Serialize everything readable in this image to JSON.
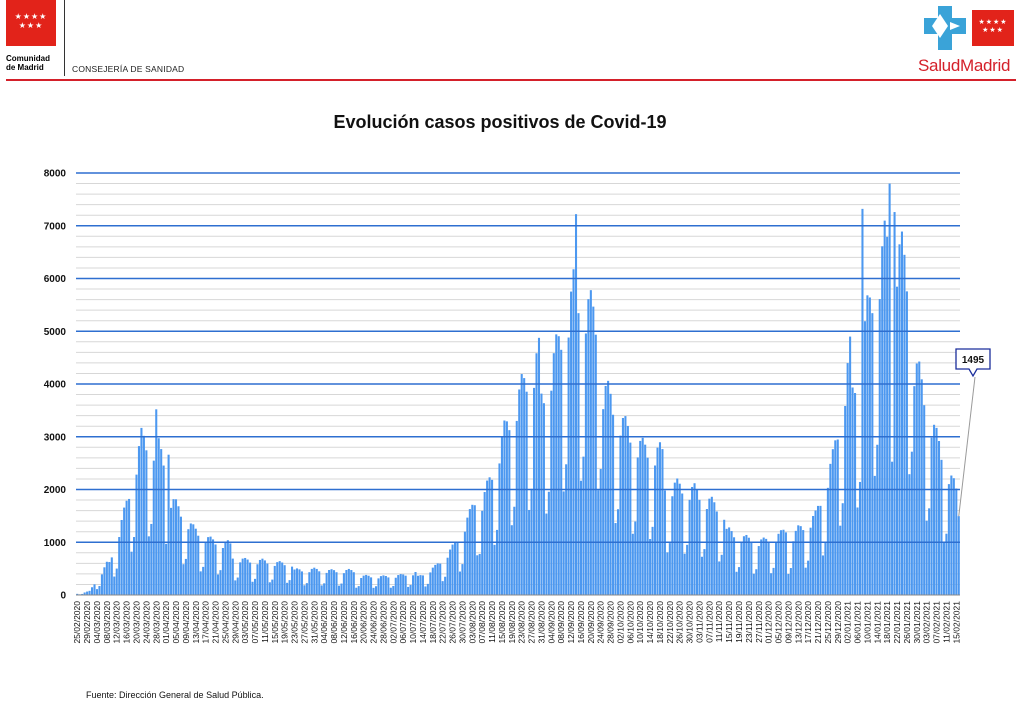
{
  "header": {
    "left_logo": {
      "stars": "★★★★\n★★★",
      "name": "Comunidad\nde Madrid",
      "icon": "comunidad-madrid-flag"
    },
    "department": "CONSEJERÍA DE SANIDAD",
    "right_logo": {
      "stars": "★★★★\n★★★",
      "name": "SaludMadrid",
      "icon": "salud-madrid-cross"
    }
  },
  "colors": {
    "bar": "#4c98f0",
    "major_grid": "#2e6fd0",
    "minor_grid": "#d7d7d7",
    "brand_red": "#d4202a",
    "callout_border": "#1b2e9c"
  },
  "chart_data": {
    "type": "bar",
    "title": "Evolución casos positivos de Covid-19",
    "xlabel": "",
    "ylabel": "",
    "ylim": [
      0,
      8000
    ],
    "yticks": [
      0,
      1000,
      2000,
      3000,
      4000,
      5000,
      6000,
      7000,
      8000
    ],
    "grid": true,
    "x_start": "25/02/2020",
    "x_end": "16/02/2021",
    "xtick_labels": [
      "25/02/2020",
      "29/02/2020",
      "04/03/2020",
      "08/03/2020",
      "12/03/2020",
      "16/03/2020",
      "20/03/2020",
      "24/03/2020",
      "28/03/2020",
      "01/04/2020",
      "05/04/2020",
      "09/04/2020",
      "13/04/2020",
      "17/04/2020",
      "21/04/2020",
      "25/04/2020",
      "29/04/2020",
      "03/05/2020",
      "07/05/2020",
      "11/05/2020",
      "15/05/2020",
      "19/05/2020",
      "23/05/2020",
      "27/05/2020",
      "31/05/2020",
      "04/06/2020",
      "08/06/2020",
      "12/06/2020",
      "16/06/2020",
      "20/06/2020",
      "24/06/2020",
      "28/06/2020",
      "02/07/2020",
      "06/07/2020",
      "10/07/2020",
      "14/07/2020",
      "18/07/2020",
      "22/07/2020",
      "26/07/2020",
      "30/07/2020",
      "03/08/2020",
      "07/08/2020",
      "11/08/2020",
      "15/08/2020",
      "19/08/2020",
      "23/08/2020",
      "27/08/2020",
      "31/08/2020",
      "04/09/2020",
      "08/09/2020",
      "12/09/2020",
      "16/09/2020",
      "20/09/2020",
      "24/09/2020",
      "28/09/2020",
      "02/10/2020",
      "06/10/2020",
      "10/10/2020",
      "14/10/2020",
      "18/10/2020",
      "22/10/2020",
      "26/10/2020",
      "30/10/2020",
      "03/11/2020",
      "07/11/2020",
      "11/11/2020",
      "15/11/2020",
      "19/11/2020",
      "23/11/2020",
      "27/11/2020",
      "01/12/2020",
      "05/12/2020",
      "09/12/2020",
      "13/12/2020",
      "17/12/2020",
      "21/12/2020",
      "25/12/2020",
      "29/12/2020",
      "02/01/2021",
      "06/01/2021",
      "10/01/2021",
      "14/01/2021",
      "18/01/2021",
      "22/01/2021",
      "26/01/2021",
      "30/01/2021",
      "03/02/2021",
      "07/02/2021",
      "11/02/2021",
      "15/02/2021"
    ],
    "weekly_trend": [
      [
        "25/02/2020",
        20
      ],
      [
        "01/03/2020",
        60
      ],
      [
        "08/03/2020",
        450
      ],
      [
        "15/03/2020",
        1400
      ],
      [
        "22/03/2020",
        2500
      ],
      [
        "29/03/2020",
        2200
      ],
      [
        "05/04/2020",
        1600
      ],
      [
        "12/04/2020",
        1100
      ],
      [
        "19/04/2020",
        850
      ],
      [
        "26/04/2020",
        750
      ],
      [
        "03/05/2020",
        600
      ],
      [
        "10/05/2020",
        550
      ],
      [
        "17/05/2020",
        480
      ],
      [
        "24/05/2020",
        450
      ],
      [
        "31/05/2020",
        430
      ],
      [
        "07/06/2020",
        380
      ],
      [
        "14/06/2020",
        360
      ],
      [
        "21/06/2020",
        330
      ],
      [
        "28/06/2020",
        300
      ],
      [
        "05/07/2020",
        300
      ],
      [
        "12/07/2020",
        330
      ],
      [
        "19/07/2020",
        480
      ],
      [
        "26/07/2020",
        750
      ],
      [
        "02/08/2020",
        1200
      ],
      [
        "09/08/2020",
        1900
      ],
      [
        "16/08/2020",
        2700
      ],
      [
        "23/08/2020",
        3200
      ],
      [
        "30/08/2020",
        3500
      ],
      [
        "06/09/2020",
        4200
      ],
      [
        "13/09/2020",
        4900
      ],
      [
        "20/09/2020",
        4300
      ],
      [
        "27/09/2020",
        3600
      ],
      [
        "04/10/2020",
        2800
      ],
      [
        "11/10/2020",
        2300
      ],
      [
        "18/10/2020",
        2100
      ],
      [
        "25/10/2020",
        1900
      ],
      [
        "01/11/2020",
        1700
      ],
      [
        "08/11/2020",
        1400
      ],
      [
        "15/11/2020",
        1150
      ],
      [
        "22/11/2020",
        950
      ],
      [
        "29/11/2020",
        850
      ],
      [
        "06/12/2020",
        900
      ],
      [
        "13/12/2020",
        1150
      ],
      [
        "20/12/2020",
        1300
      ],
      [
        "27/12/2020",
        2100
      ],
      [
        "03/01/2021",
        3500
      ],
      [
        "10/01/2021",
        4800
      ],
      [
        "17/01/2021",
        5600
      ],
      [
        "24/01/2021",
        5100
      ],
      [
        "31/01/2021",
        3900
      ],
      [
        "07/02/2021",
        2600
      ],
      [
        "14/02/2021",
        1700
      ],
      [
        "16/02/2021",
        1500
      ]
    ],
    "peaks": [
      [
        "28/03/2020",
        3520
      ],
      [
        "02/04/2020",
        2660
      ],
      [
        "14/09/2020",
        7220
      ],
      [
        "08/01/2021",
        7320
      ],
      [
        "19/01/2021",
        7800
      ],
      [
        "21/01/2021",
        7260
      ]
    ],
    "annotation": {
      "date": "16/02/2021",
      "value": 1495,
      "label": "1495"
    },
    "source_label": "Fuente: Dirección General de Salud Pública."
  }
}
